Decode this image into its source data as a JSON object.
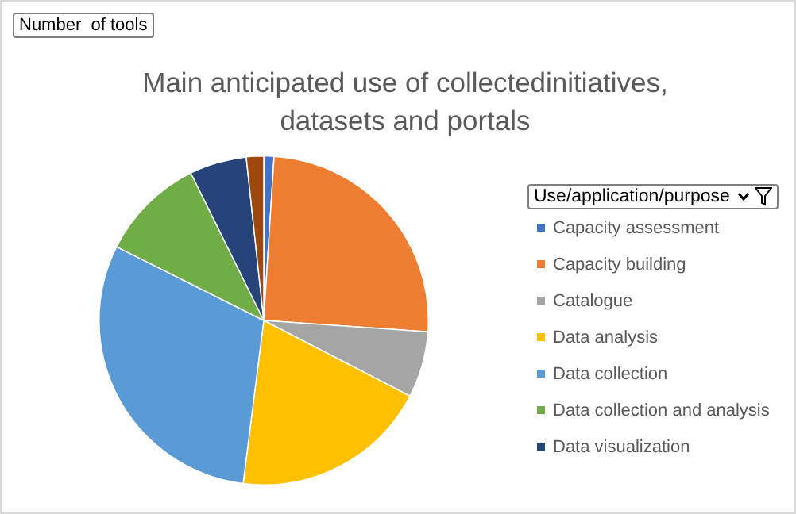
{
  "chart_data": {
    "type": "pie",
    "title": "Main anticipated use of collectedinitiatives, datasets and portals",
    "legend_title": "Use/application/purpose",
    "annotations": [
      "Number  of tools"
    ],
    "categories": [
      "Capacity assessment",
      "Capacity building",
      "Catalogue",
      "Data analysis",
      "Data collection",
      "Data collection and analysis",
      "Data visualization",
      null
    ],
    "values": [
      1.0,
      25.1,
      6.5,
      19.4,
      30.4,
      10.3,
      5.6,
      1.7
    ],
    "colors": [
      "#4472c4",
      "#ed7d31",
      "#a5a5a5",
      "#ffc000",
      "#5b9bd5",
      "#70ad47",
      "#264478",
      "#9e480e"
    ],
    "legend": "right"
  }
}
